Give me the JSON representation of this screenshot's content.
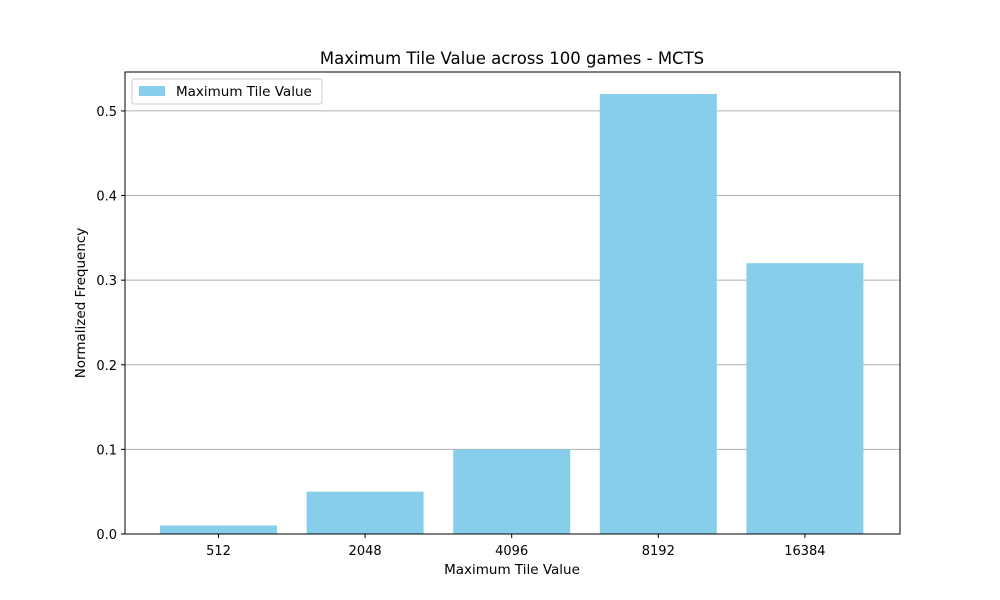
{
  "chart_data": {
    "type": "bar",
    "title": "Maximum Tile Value across 100 games - MCTS",
    "xlabel": "Maximum Tile Value",
    "ylabel": "Normalized Frequency",
    "categories": [
      "512",
      "2048",
      "4096",
      "8192",
      "16384"
    ],
    "series": [
      {
        "name": "Maximum Tile Value",
        "values": [
          0.01,
          0.05,
          0.1,
          0.52,
          0.32
        ]
      }
    ],
    "ylim": [
      0,
      0.546
    ],
    "yticks": [
      0.0,
      0.1,
      0.2,
      0.3,
      0.4,
      0.5
    ],
    "ytick_labels": [
      "0.0",
      "0.1",
      "0.2",
      "0.3",
      "0.4",
      "0.5"
    ],
    "grid": "horizontal",
    "legend_position": "top-left",
    "colors": {
      "bar": "#87ceeb",
      "grid": "#b0b0b0",
      "axis": "#000000"
    }
  }
}
